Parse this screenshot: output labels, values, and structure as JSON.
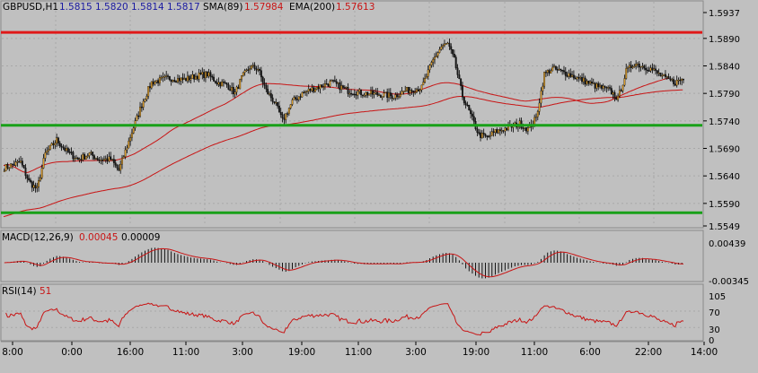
{
  "header": {
    "symbol": "GBPUSD,H1",
    "ohlc": [
      "1.5815",
      "1.5820",
      "1.5814",
      "1.5817"
    ],
    "sma_label": "SMA(89)",
    "sma_value": "1.57984",
    "ema_label": "EMA(200)",
    "ema_value": "1.57613"
  },
  "colors": {
    "background": "#c0c0c0",
    "plot_bg": "#c0c0c0",
    "grid": "#a8a8a8",
    "bull_candle": "#d89a2a",
    "bear_candle": "#1a1a1a",
    "sma": "#c81414",
    "ema": "#c81414",
    "resistance": "#e01818",
    "support": "#18a018",
    "macd_hist": "#000000",
    "macd_signal": "#c81414",
    "rsi": "#c81414",
    "ohlc_text": "#1a1aa0",
    "value_text": "#c81414"
  },
  "main_axis": {
    "ticks": [
      "1.5937",
      "1.5890",
      "1.5840",
      "1.5790",
      "1.5740",
      "1.5690",
      "1.5640",
      "1.5590",
      "1.5549"
    ]
  },
  "time_axis": {
    "ticks": [
      "8:00",
      "0:00",
      "16:00",
      "11:00",
      "3:00",
      "19:00",
      "11:00",
      "3:00",
      "19:00",
      "11:00",
      "6:00",
      "22:00",
      "14:00"
    ]
  },
  "levels": {
    "resistance": [
      1.5901
    ],
    "support": [
      1.5732,
      1.5573
    ]
  },
  "macd": {
    "label": "MACD(12,26,9)",
    "value1": "0.00045",
    "value2": "0.00009",
    "ticks": [
      "0.00439",
      "-0.00345"
    ]
  },
  "rsi": {
    "label": "RSI(14)",
    "value": "51",
    "ticks": [
      "105",
      "70",
      "30",
      "0"
    ]
  },
  "chart_data": {
    "type": "candlestick",
    "symbol": "GBPUSD",
    "timeframe": "H1",
    "ylim": [
      1.5549,
      1.5937
    ],
    "keypoints": [
      [
        0,
        1.5655
      ],
      [
        5,
        1.566
      ],
      [
        10,
        1.5665
      ],
      [
        15,
        1.563
      ],
      [
        20,
        1.5615
      ],
      [
        25,
        1.568
      ],
      [
        32,
        1.5705
      ],
      [
        38,
        1.5685
      ],
      [
        45,
        1.567
      ],
      [
        52,
        1.568
      ],
      [
        58,
        1.567
      ],
      [
        65,
        1.567
      ],
      [
        70,
        1.565
      ],
      [
        74,
        1.5685
      ],
      [
        78,
        1.572
      ],
      [
        84,
        1.577
      ],
      [
        90,
        1.581
      ],
      [
        100,
        1.5818
      ],
      [
        110,
        1.5815
      ],
      [
        118,
        1.5822
      ],
      [
        124,
        1.5825
      ],
      [
        130,
        1.581
      ],
      [
        136,
        1.5806
      ],
      [
        141,
        1.579
      ],
      [
        145,
        1.5818
      ],
      [
        150,
        1.5838
      ],
      [
        155,
        1.5835
      ],
      [
        160,
        1.5795
      ],
      [
        165,
        1.5775
      ],
      [
        170,
        1.574
      ],
      [
        176,
        1.5775
      ],
      [
        182,
        1.579
      ],
      [
        190,
        1.58
      ],
      [
        200,
        1.581
      ],
      [
        210,
        1.5795
      ],
      [
        220,
        1.579
      ],
      [
        230,
        1.5788
      ],
      [
        238,
        1.5785
      ],
      [
        245,
        1.5795
      ],
      [
        255,
        1.58
      ],
      [
        262,
        1.585
      ],
      [
        267,
        1.5875
      ],
      [
        271,
        1.588
      ],
      [
        275,
        1.585
      ],
      [
        280,
        1.5785
      ],
      [
        285,
        1.575
      ],
      [
        290,
        1.5715
      ],
      [
        295,
        1.571
      ],
      [
        300,
        1.572
      ],
      [
        305,
        1.5725
      ],
      [
        310,
        1.573
      ],
      [
        315,
        1.5735
      ],
      [
        320,
        1.5725
      ],
      [
        325,
        1.5745
      ],
      [
        330,
        1.5825
      ],
      [
        335,
        1.5835
      ],
      [
        340,
        1.583
      ],
      [
        345,
        1.5825
      ],
      [
        350,
        1.5818
      ],
      [
        355,
        1.5812
      ],
      [
        360,
        1.5805
      ],
      [
        365,
        1.58
      ],
      [
        370,
        1.5795
      ],
      [
        375,
        1.578
      ],
      [
        380,
        1.583
      ],
      [
        385,
        1.5845
      ],
      [
        390,
        1.584
      ],
      [
        395,
        1.5835
      ],
      [
        400,
        1.5825
      ],
      [
        405,
        1.5815
      ],
      [
        410,
        1.581
      ],
      [
        415,
        1.5817
      ]
    ],
    "n_bars": 416,
    "sma_period": 89,
    "ema_period": 200,
    "ema_start": 1.5565
  }
}
